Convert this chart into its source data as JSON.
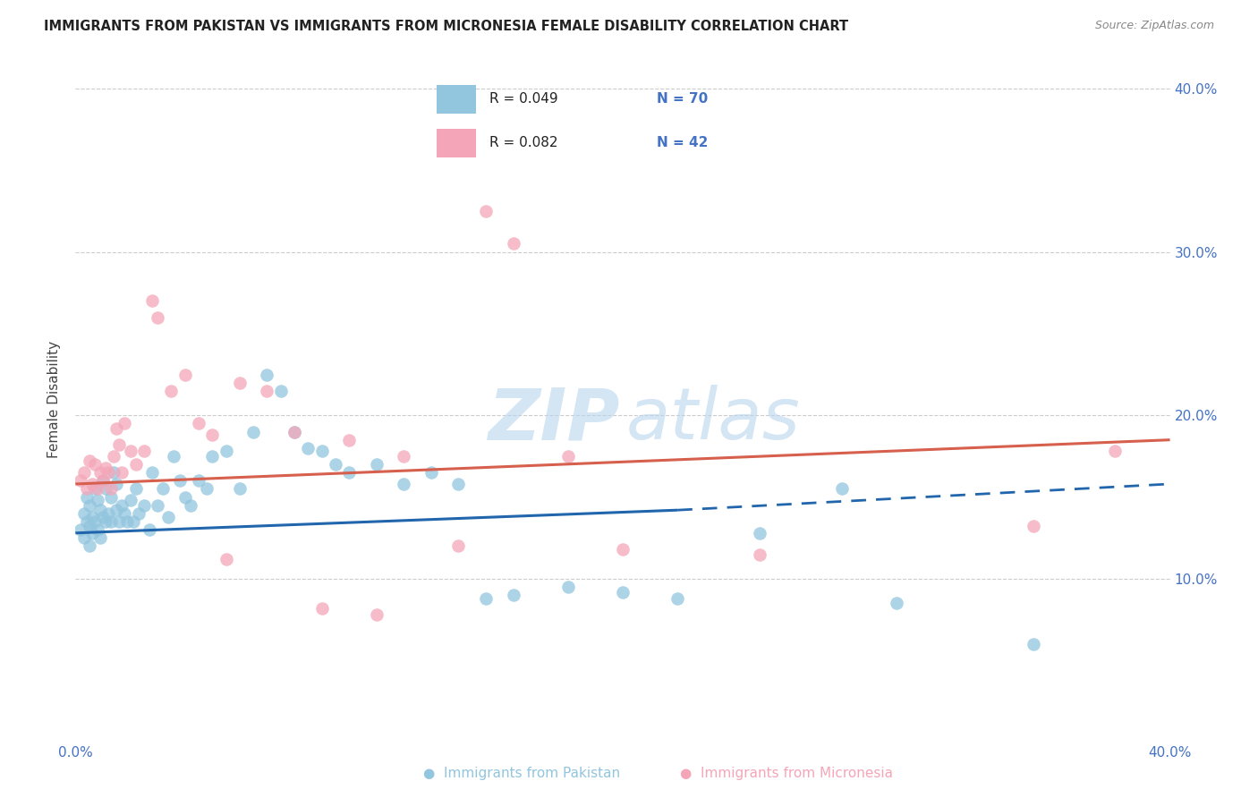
{
  "title": "IMMIGRANTS FROM PAKISTAN VS IMMIGRANTS FROM MICRONESIA FEMALE DISABILITY CORRELATION CHART",
  "source": "Source: ZipAtlas.com",
  "ylabel": "Female Disability",
  "xlim": [
    0.0,
    0.4
  ],
  "ylim": [
    0.0,
    0.42
  ],
  "blue_color": "#92c5de",
  "pink_color": "#f4a6b8",
  "trend_blue": "#2166ac",
  "trend_pink": "#d6604d",
  "axis_label_color": "#4472c4",
  "grid_color": "#cccccc",
  "pakistan_x": [
    0.002,
    0.003,
    0.003,
    0.004,
    0.004,
    0.005,
    0.005,
    0.005,
    0.006,
    0.006,
    0.007,
    0.007,
    0.008,
    0.008,
    0.009,
    0.009,
    0.01,
    0.01,
    0.011,
    0.011,
    0.012,
    0.013,
    0.013,
    0.014,
    0.015,
    0.015,
    0.016,
    0.017,
    0.018,
    0.019,
    0.02,
    0.021,
    0.022,
    0.023,
    0.025,
    0.027,
    0.028,
    0.03,
    0.032,
    0.034,
    0.036,
    0.038,
    0.04,
    0.042,
    0.045,
    0.048,
    0.05,
    0.055,
    0.06,
    0.065,
    0.07,
    0.075,
    0.08,
    0.085,
    0.09,
    0.095,
    0.1,
    0.11,
    0.12,
    0.13,
    0.14,
    0.15,
    0.16,
    0.18,
    0.2,
    0.22,
    0.25,
    0.3,
    0.35,
    0.28
  ],
  "pakistan_y": [
    0.13,
    0.125,
    0.14,
    0.135,
    0.15,
    0.12,
    0.132,
    0.145,
    0.138,
    0.128,
    0.135,
    0.155,
    0.13,
    0.148,
    0.125,
    0.142,
    0.138,
    0.16,
    0.135,
    0.155,
    0.14,
    0.135,
    0.15,
    0.165,
    0.142,
    0.158,
    0.135,
    0.145,
    0.14,
    0.135,
    0.148,
    0.135,
    0.155,
    0.14,
    0.145,
    0.13,
    0.165,
    0.145,
    0.155,
    0.138,
    0.175,
    0.16,
    0.15,
    0.145,
    0.16,
    0.155,
    0.175,
    0.178,
    0.155,
    0.19,
    0.225,
    0.215,
    0.19,
    0.18,
    0.178,
    0.17,
    0.165,
    0.17,
    0.158,
    0.165,
    0.158,
    0.088,
    0.09,
    0.095,
    0.092,
    0.088,
    0.128,
    0.085,
    0.06,
    0.155
  ],
  "micronesia_x": [
    0.002,
    0.003,
    0.004,
    0.005,
    0.006,
    0.007,
    0.008,
    0.009,
    0.01,
    0.011,
    0.012,
    0.013,
    0.014,
    0.015,
    0.016,
    0.017,
    0.018,
    0.02,
    0.022,
    0.025,
    0.028,
    0.03,
    0.035,
    0.04,
    0.045,
    0.05,
    0.06,
    0.07,
    0.08,
    0.1,
    0.12,
    0.14,
    0.15,
    0.16,
    0.18,
    0.2,
    0.25,
    0.35,
    0.38,
    0.11,
    0.09,
    0.055
  ],
  "micronesia_y": [
    0.16,
    0.165,
    0.155,
    0.172,
    0.158,
    0.17,
    0.155,
    0.165,
    0.16,
    0.168,
    0.165,
    0.155,
    0.175,
    0.192,
    0.182,
    0.165,
    0.195,
    0.178,
    0.17,
    0.178,
    0.27,
    0.26,
    0.215,
    0.225,
    0.195,
    0.188,
    0.22,
    0.215,
    0.19,
    0.185,
    0.175,
    0.12,
    0.325,
    0.305,
    0.175,
    0.118,
    0.115,
    0.132,
    0.178,
    0.078,
    0.082,
    0.112
  ]
}
